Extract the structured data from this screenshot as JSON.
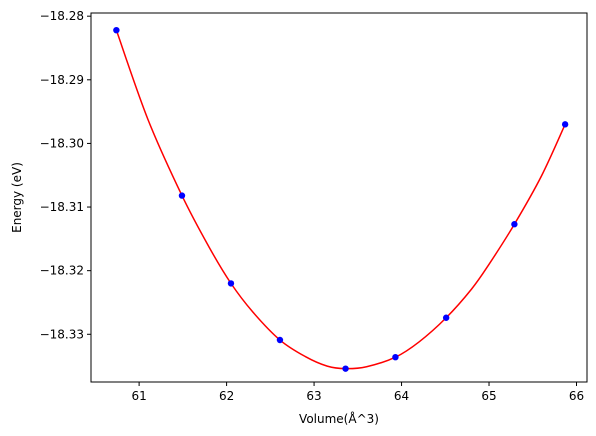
{
  "chart_data": {
    "type": "scatter",
    "xlabel": "Volume(Å^3)",
    "ylabel": "Energy (eV)",
    "xlim": [
      60.45,
      66.12
    ],
    "ylim": [
      -18.3375,
      -18.2795
    ],
    "xticks": [
      61,
      62,
      63,
      64,
      65,
      66
    ],
    "yticks": [
      -18.28,
      -18.29,
      -18.3,
      -18.31,
      -18.32,
      -18.33
    ],
    "xtick_labels": [
      "61",
      "62",
      "63",
      "64",
      "65",
      "66"
    ],
    "ytick_labels": [
      "−18.28",
      "−18.29",
      "−18.30",
      "−18.31",
      "−18.32",
      "−18.33"
    ],
    "grid": false,
    "series": [
      {
        "kind": "points",
        "color": "#0000ff",
        "x": [
          60.74,
          61.49,
          62.05,
          62.61,
          63.36,
          63.93,
          64.51,
          65.29,
          65.87
        ],
        "y": [
          -18.2822,
          -18.3082,
          -18.322,
          -18.3309,
          -18.3354,
          -18.3336,
          -18.3274,
          -18.3127,
          -18.297
        ]
      },
      {
        "kind": "fit-curve",
        "color": "#ff0000",
        "x": [
          60.74,
          61.1,
          61.49,
          61.8,
          62.05,
          62.3,
          62.61,
          62.9,
          63.15,
          63.36,
          63.6,
          63.93,
          64.2,
          64.51,
          64.8,
          65.0,
          65.29,
          65.6,
          65.87
        ],
        "y": [
          -18.2822,
          -18.2962,
          -18.3082,
          -18.3163,
          -18.322,
          -18.3265,
          -18.3309,
          -18.3335,
          -18.335,
          -18.3354,
          -18.3351,
          -18.3336,
          -18.3312,
          -18.3274,
          -18.3229,
          -18.319,
          -18.3127,
          -18.3051,
          -18.297
        ]
      }
    ]
  }
}
